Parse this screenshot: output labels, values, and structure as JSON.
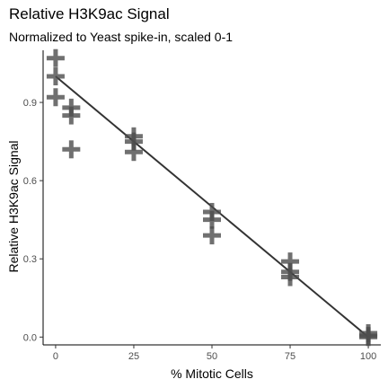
{
  "chart_data": {
    "type": "scatter",
    "title": "Relative H3K9ac Signal",
    "subtitle": "Normalized to Yeast spike-in, scaled 0-1",
    "xlabel": "% Mitotic Cells",
    "ylabel": "Relative H3K9ac Signal",
    "xlim": [
      -4,
      104
    ],
    "ylim": [
      -0.03,
      1.1
    ],
    "x_ticks": [
      0,
      25,
      50,
      75,
      100
    ],
    "x_tick_labels": [
      "0",
      "25",
      "50",
      "75",
      "100"
    ],
    "y_ticks": [
      0.0,
      0.3,
      0.6,
      0.9
    ],
    "y_tick_labels": [
      "0.0",
      "0.3",
      "0.6",
      "0.9"
    ],
    "grid": false,
    "marker": "plus",
    "point_color": "#4d4d4d",
    "line_color": "#333333",
    "points": [
      {
        "x": 0,
        "y": 1.07
      },
      {
        "x": 0,
        "y": 1.0
      },
      {
        "x": 0,
        "y": 0.92
      },
      {
        "x": 5,
        "y": 0.88
      },
      {
        "x": 5,
        "y": 0.85
      },
      {
        "x": 5,
        "y": 0.72
      },
      {
        "x": 25,
        "y": 0.77
      },
      {
        "x": 25,
        "y": 0.75
      },
      {
        "x": 25,
        "y": 0.71
      },
      {
        "x": 50,
        "y": 0.48
      },
      {
        "x": 50,
        "y": 0.45
      },
      {
        "x": 50,
        "y": 0.39
      },
      {
        "x": 75,
        "y": 0.29
      },
      {
        "x": 75,
        "y": 0.25
      },
      {
        "x": 75,
        "y": 0.23
      },
      {
        "x": 100,
        "y": 0.015
      },
      {
        "x": 100,
        "y": 0.005
      },
      {
        "x": 100,
        "y": 0.0
      }
    ],
    "fit_line": {
      "x": [
        0,
        100
      ],
      "y": [
        1.0,
        0.0
      ]
    }
  }
}
